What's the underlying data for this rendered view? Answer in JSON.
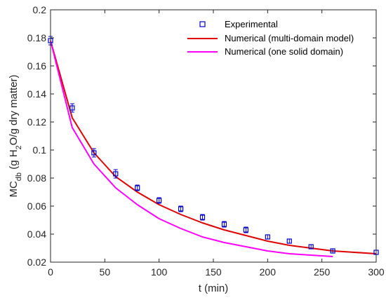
{
  "chart_data": {
    "type": "line",
    "title": "",
    "xlabel": "t (min)",
    "ylabel": {
      "base": "MC",
      "sub": "db",
      "pre": " (g H",
      "sub2": "2",
      "post": "O/g dry matter)"
    },
    "xlim": [
      0,
      300
    ],
    "ylim": [
      0.02,
      0.2
    ],
    "xticks": [
      0,
      50,
      100,
      150,
      200,
      250,
      300
    ],
    "yticks": [
      0.02,
      0.04,
      0.06,
      0.08,
      0.1,
      0.12,
      0.14,
      0.16,
      0.18,
      0.2
    ],
    "xtick_labels": [
      "0",
      "50",
      "100",
      "150",
      "200",
      "250",
      "300"
    ],
    "ytick_labels": [
      "0.02",
      "0.04",
      "0.06",
      "0.08",
      "0.1",
      "0.12",
      "0.14",
      "0.16",
      "0.18",
      "0.2"
    ],
    "grid": false,
    "legend_position": "top-right",
    "series": [
      {
        "name": "Experimental",
        "kind": "scatter-errorbar",
        "color": "#0000cc",
        "x": [
          0,
          20,
          40,
          60,
          80,
          100,
          120,
          140,
          160,
          180,
          200,
          220,
          240,
          260,
          300
        ],
        "y": [
          0.178,
          0.13,
          0.098,
          0.083,
          0.073,
          0.064,
          0.058,
          0.052,
          0.047,
          0.043,
          0.038,
          0.035,
          0.031,
          0.028,
          0.027
        ],
        "err": [
          0.003,
          0.003,
          0.003,
          0.003,
          0.002,
          0.002,
          0.002,
          0.002,
          0.002,
          0.002,
          0.0015,
          0.0015,
          0.0015,
          0.0015,
          0.0015
        ]
      },
      {
        "name": "Numerical (multi-domain model)",
        "kind": "line",
        "color": "#e00000",
        "x": [
          0,
          20,
          40,
          60,
          80,
          100,
          120,
          140,
          160,
          180,
          200,
          220,
          240,
          260,
          280,
          300
        ],
        "y": [
          0.178,
          0.123,
          0.098,
          0.081,
          0.07,
          0.061,
          0.054,
          0.048,
          0.043,
          0.039,
          0.035,
          0.032,
          0.03,
          0.028,
          0.027,
          0.026
        ]
      },
      {
        "name": "Numerical (one solid domain)",
        "kind": "line",
        "color": "#ff00ff",
        "x": [
          0,
          20,
          40,
          60,
          80,
          100,
          120,
          140,
          160,
          180,
          200,
          220,
          240,
          260
        ],
        "y": [
          0.178,
          0.116,
          0.09,
          0.073,
          0.061,
          0.051,
          0.044,
          0.038,
          0.034,
          0.031,
          0.028,
          0.026,
          0.025,
          0.024
        ]
      }
    ]
  }
}
